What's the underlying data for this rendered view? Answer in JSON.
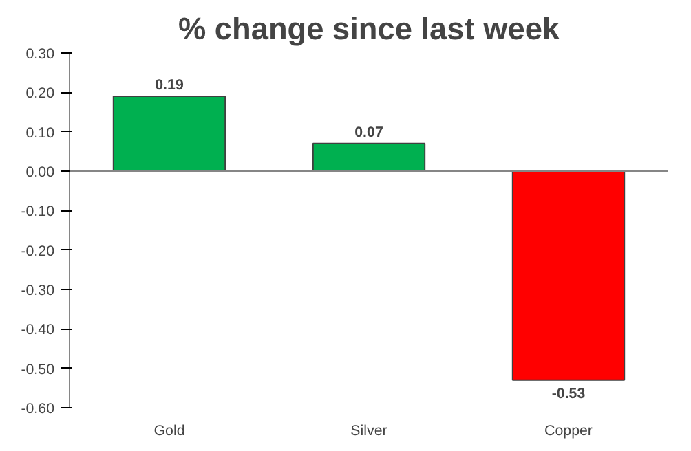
{
  "chart_data": {
    "type": "bar",
    "title": "% change since last week",
    "categories": [
      "Gold",
      "Silver",
      "Copper"
    ],
    "values": [
      0.19,
      0.07,
      -0.53
    ],
    "colors": [
      "#00b050",
      "#00b050",
      "#ff0000"
    ],
    "ylim": [
      -0.6,
      0.3
    ],
    "yticks": [
      {
        "value": 0.3,
        "label": "0.30"
      },
      {
        "value": 0.2,
        "label": "0.20"
      },
      {
        "value": 0.1,
        "label": "0.10"
      },
      {
        "value": 0,
        "label": "0.00"
      },
      {
        "value": -0.1,
        "label": "-0.10"
      },
      {
        "value": -0.2,
        "label": "-0.20"
      },
      {
        "value": -0.3,
        "label": "-0.30"
      },
      {
        "value": -0.4,
        "label": "-0.40"
      },
      {
        "value": -0.5,
        "label": "-0.50"
      },
      {
        "value": -0.6,
        "label": "-0.60"
      }
    ],
    "grid": false,
    "ref_lines": [
      {
        "axis": "y",
        "value": 0,
        "color": "#868686"
      }
    ],
    "data_labels": true
  }
}
